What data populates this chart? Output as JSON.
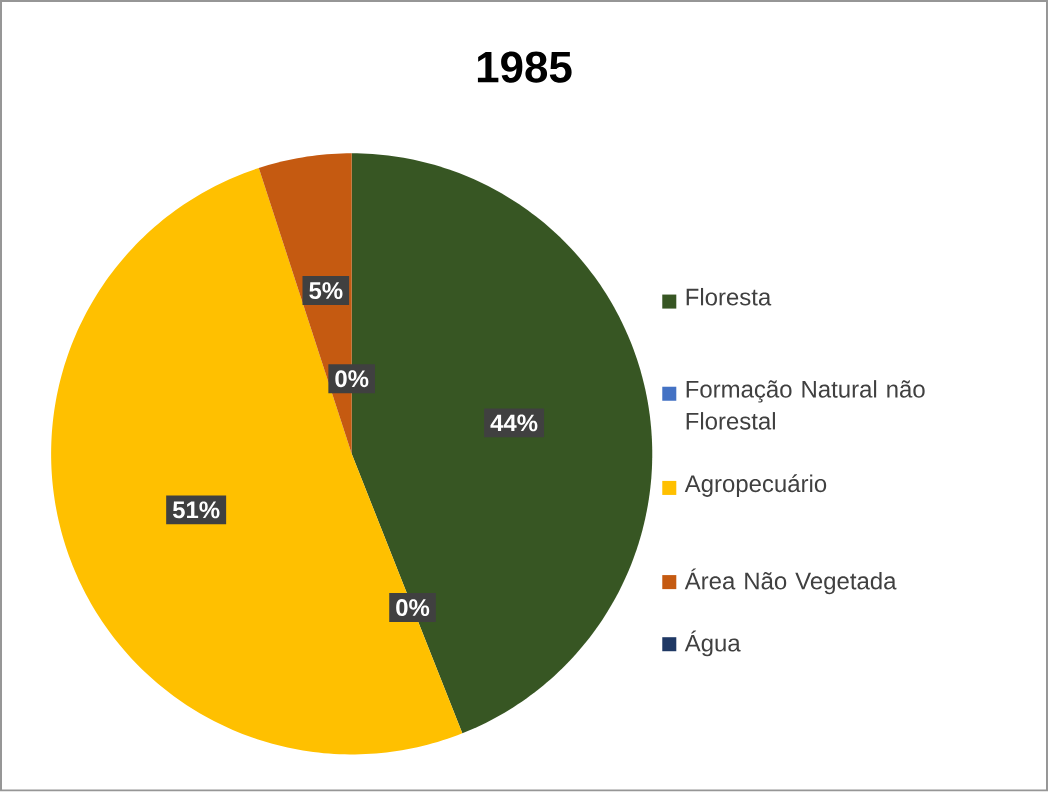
{
  "chart_data": {
    "type": "pie",
    "title": "1985",
    "categories": [
      "Floresta",
      "Formação Natural não Florestal",
      "Agropecuário",
      "Área Não Vegetada",
      "Água"
    ],
    "values": [
      44,
      0,
      51,
      5,
      0
    ],
    "value_labels": [
      "44%",
      "0%",
      "51%",
      "5%",
      "0%"
    ],
    "colors": [
      "#375623",
      "#4472c4",
      "#ffc000",
      "#c55a11",
      "#1f3864"
    ],
    "legend": "right"
  }
}
